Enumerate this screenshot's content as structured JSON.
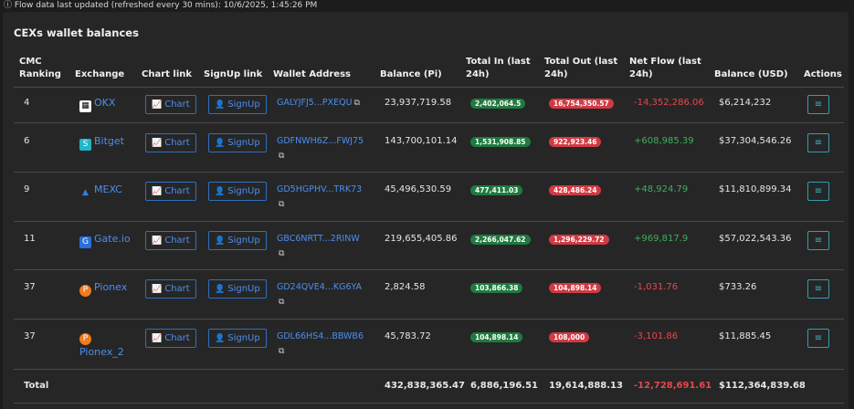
{
  "top_note": "ⓘ Flow data last updated (refreshed every 30 mins): 10/6/2025, 1:45:26 PM",
  "title": "CEXs wallet balances",
  "headers": {
    "cmc1": "CMC",
    "cmc2": "Ranking",
    "exchange": "Exchange",
    "chart": "Chart link",
    "signup": "SignUp link",
    "wallet": "Wallet Address",
    "balance": "Balance (Pi)",
    "in1": "Total In (last",
    "in2": "24h)",
    "out1": "Total Out (last",
    "out2": "24h)",
    "net1": "Net Flow (last",
    "net2": "24h)",
    "usd": "Balance (USD)",
    "actions": "Actions"
  },
  "buttons": {
    "chart": "Chart",
    "signup": "SignUp"
  },
  "icons": {
    "chart": "chart-line-icon",
    "signup": "user-plus-icon",
    "copy": "copy-icon",
    "filter": "filter-icon"
  },
  "rows": [
    {
      "rank": "4",
      "exchange": "OKX",
      "wallet": "GALYJFJ5...PXEQU",
      "balance": "23,937,719.58",
      "in": "2,402,064.5",
      "out": "16,754,350.57",
      "net": "-14,352,286.06",
      "usd": "$6,214,232"
    },
    {
      "rank": "6",
      "exchange": "Bitget",
      "wallet": "GDFNWH6Z...FWJ75",
      "balance": "143,700,101.14",
      "in": "1,531,908.85",
      "out": "922,923.46",
      "net": "+608,985.39",
      "usd": "$37,304,546.26"
    },
    {
      "rank": "9",
      "exchange": "MEXC",
      "wallet": "GD5HGPHV...TRK73",
      "balance": "45,496,530.59",
      "in": "477,411.03",
      "out": "428,486.24",
      "net": "+48,924.79",
      "usd": "$11,810,899.34"
    },
    {
      "rank": "11",
      "exchange": "Gate.io",
      "wallet": "GBC6NRTT...2RINW",
      "balance": "219,655,405.86",
      "in": "2,266,047.62",
      "out": "1,296,229.72",
      "net": "+969,817.9",
      "usd": "$57,022,543.36"
    },
    {
      "rank": "37",
      "exchange": "Pionex",
      "wallet": "GD24QVE4...KG6YA",
      "balance": "2,824.58",
      "in": "103,866.38",
      "out": "104,898.14",
      "net": "-1,031.76",
      "usd": "$733.26"
    },
    {
      "rank": "37",
      "exchange": "Pionex_2",
      "wallet": "GDL66HS4...BBWB6",
      "balance": "45,783.72",
      "in": "104,898.14",
      "out": "108,000",
      "net": "-3,101.86",
      "usd": "$11,885.45"
    }
  ],
  "total": {
    "label": "Total",
    "balance": "432,838,365.47",
    "in": "6,886,196.51",
    "out": "19,614,888.13",
    "net": "-12,728,691.61",
    "usd": "$112,364,839.68"
  }
}
